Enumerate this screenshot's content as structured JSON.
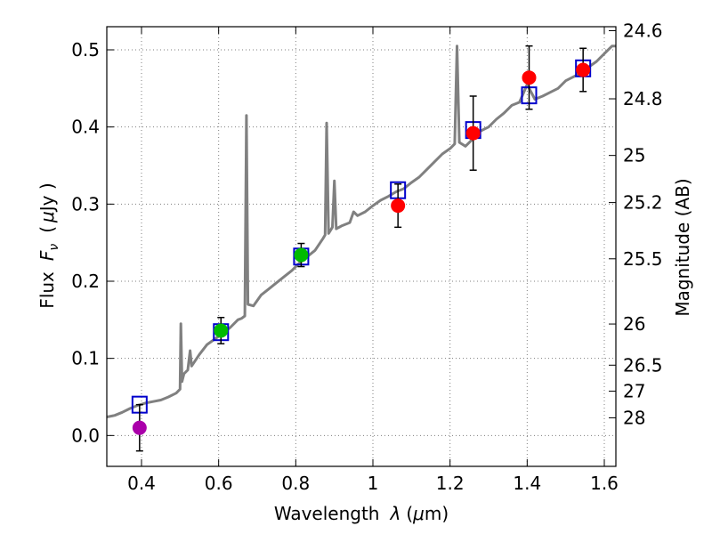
{
  "chart_data": {
    "type": "scatter",
    "xlabel_prefix": "Wavelength",
    "xlabel_symbol": "λ",
    "xlabel_unit_open": "(",
    "xlabel_unit_mu": "μ",
    "xlabel_unit_rest": "m)",
    "ylabel_prefix": "Flux",
    "ylabel_symbol": "F",
    "ylabel_sub": "ν",
    "ylabel_unit_open": "(",
    "ylabel_unit_mu": "μ",
    "ylabel_unit_rest": "Jy )",
    "y2label": "Magnitude (AB)",
    "xlim": [
      0.31,
      1.63
    ],
    "ylim": [
      -0.04,
      0.53
    ],
    "grid": true,
    "x_ticks": [
      0.4,
      0.6,
      0.8,
      1.0,
      1.2,
      1.4,
      1.6
    ],
    "x_tick_labels": [
      "0.4",
      "0.6",
      "0.8",
      "1",
      "1.2",
      "1.4",
      "1.6"
    ],
    "y_ticks": [
      0.0,
      0.1,
      0.2,
      0.3,
      0.4,
      0.5
    ],
    "y_tick_labels": [
      "0.0",
      "0.1",
      "0.2",
      "0.3",
      "0.4",
      "0.5"
    ],
    "mag_ticks": [
      {
        "mag": 24.6,
        "label": "24.6"
      },
      {
        "mag": 24.8,
        "label": "24.8"
      },
      {
        "mag": 25.0,
        "label": "25"
      },
      {
        "mag": 25.2,
        "label": "25.2"
      },
      {
        "mag": 25.5,
        "label": "25.5"
      },
      {
        "mag": 26.0,
        "label": "26"
      },
      {
        "mag": 26.5,
        "label": "26.5"
      },
      {
        "mag": 27.0,
        "label": "27"
      },
      {
        "mag": 28.0,
        "label": "28"
      }
    ],
    "observed": [
      {
        "x": 0.395,
        "y": 0.01,
        "err": 0.03,
        "color": "#aa00aa"
      },
      {
        "x": 0.606,
        "y": 0.136,
        "err": 0.017,
        "color": "#00bb00"
      },
      {
        "x": 0.814,
        "y": 0.234,
        "err": 0.015,
        "color": "#00bb00"
      },
      {
        "x": 1.065,
        "y": 0.298,
        "err": 0.028,
        "color": "#ff0000"
      },
      {
        "x": 1.26,
        "y": 0.392,
        "err": 0.048,
        "color": "#ff0000"
      },
      {
        "x": 1.405,
        "y": 0.464,
        "err": 0.041,
        "color": "#ff0000"
      },
      {
        "x": 1.545,
        "y": 0.474,
        "err": 0.028,
        "color": "#ff0000"
      }
    ],
    "model_photometry": [
      {
        "x": 0.395,
        "y": 0.04
      },
      {
        "x": 0.606,
        "y": 0.134
      },
      {
        "x": 0.814,
        "y": 0.232
      },
      {
        "x": 1.065,
        "y": 0.318
      },
      {
        "x": 1.26,
        "y": 0.396
      },
      {
        "x": 1.405,
        "y": 0.441
      },
      {
        "x": 1.545,
        "y": 0.476
      }
    ],
    "model_spectrum": [
      [
        0.31,
        0.024
      ],
      [
        0.33,
        0.026
      ],
      [
        0.35,
        0.03
      ],
      [
        0.37,
        0.035
      ],
      [
        0.39,
        0.039
      ],
      [
        0.41,
        0.042
      ],
      [
        0.43,
        0.044
      ],
      [
        0.45,
        0.046
      ],
      [
        0.47,
        0.05
      ],
      [
        0.49,
        0.055
      ],
      [
        0.5,
        0.06
      ],
      [
        0.502,
        0.145
      ],
      [
        0.505,
        0.07
      ],
      [
        0.51,
        0.08
      ],
      [
        0.52,
        0.085
      ],
      [
        0.526,
        0.11
      ],
      [
        0.53,
        0.09
      ],
      [
        0.55,
        0.105
      ],
      [
        0.57,
        0.118
      ],
      [
        0.59,
        0.125
      ],
      [
        0.61,
        0.132
      ],
      [
        0.63,
        0.14
      ],
      [
        0.65,
        0.15
      ],
      [
        0.66,
        0.152
      ],
      [
        0.668,
        0.155
      ],
      [
        0.672,
        0.415
      ],
      [
        0.676,
        0.17
      ],
      [
        0.69,
        0.168
      ],
      [
        0.71,
        0.182
      ],
      [
        0.73,
        0.19
      ],
      [
        0.75,
        0.198
      ],
      [
        0.77,
        0.206
      ],
      [
        0.79,
        0.214
      ],
      [
        0.81,
        0.224
      ],
      [
        0.83,
        0.232
      ],
      [
        0.85,
        0.24
      ],
      [
        0.87,
        0.255
      ],
      [
        0.876,
        0.26
      ],
      [
        0.88,
        0.405
      ],
      [
        0.885,
        0.262
      ],
      [
        0.895,
        0.27
      ],
      [
        0.9,
        0.33
      ],
      [
        0.905,
        0.268
      ],
      [
        0.92,
        0.272
      ],
      [
        0.94,
        0.276
      ],
      [
        0.95,
        0.29
      ],
      [
        0.96,
        0.285
      ],
      [
        0.98,
        0.29
      ],
      [
        1.0,
        0.298
      ],
      [
        1.02,
        0.305
      ],
      [
        1.04,
        0.31
      ],
      [
        1.06,
        0.316
      ],
      [
        1.08,
        0.32
      ],
      [
        1.1,
        0.328
      ],
      [
        1.12,
        0.335
      ],
      [
        1.14,
        0.345
      ],
      [
        1.16,
        0.355
      ],
      [
        1.18,
        0.365
      ],
      [
        1.2,
        0.372
      ],
      [
        1.212,
        0.378
      ],
      [
        1.218,
        0.505
      ],
      [
        1.224,
        0.38
      ],
      [
        1.24,
        0.375
      ],
      [
        1.26,
        0.385
      ],
      [
        1.28,
        0.395
      ],
      [
        1.3,
        0.4
      ],
      [
        1.32,
        0.41
      ],
      [
        1.34,
        0.418
      ],
      [
        1.36,
        0.428
      ],
      [
        1.38,
        0.432
      ],
      [
        1.4,
        0.455
      ],
      [
        1.42,
        0.436
      ],
      [
        1.44,
        0.44
      ],
      [
        1.46,
        0.445
      ],
      [
        1.48,
        0.45
      ],
      [
        1.5,
        0.46
      ],
      [
        1.52,
        0.465
      ],
      [
        1.54,
        0.47
      ],
      [
        1.56,
        0.478
      ],
      [
        1.58,
        0.485
      ],
      [
        1.6,
        0.495
      ],
      [
        1.62,
        0.505
      ],
      [
        1.63,
        0.505
      ]
    ],
    "colors": {
      "spectrum": "#808080",
      "model_box": "#0000cc",
      "error_bar": "#000000",
      "grid": "#7f7f7f"
    }
  }
}
